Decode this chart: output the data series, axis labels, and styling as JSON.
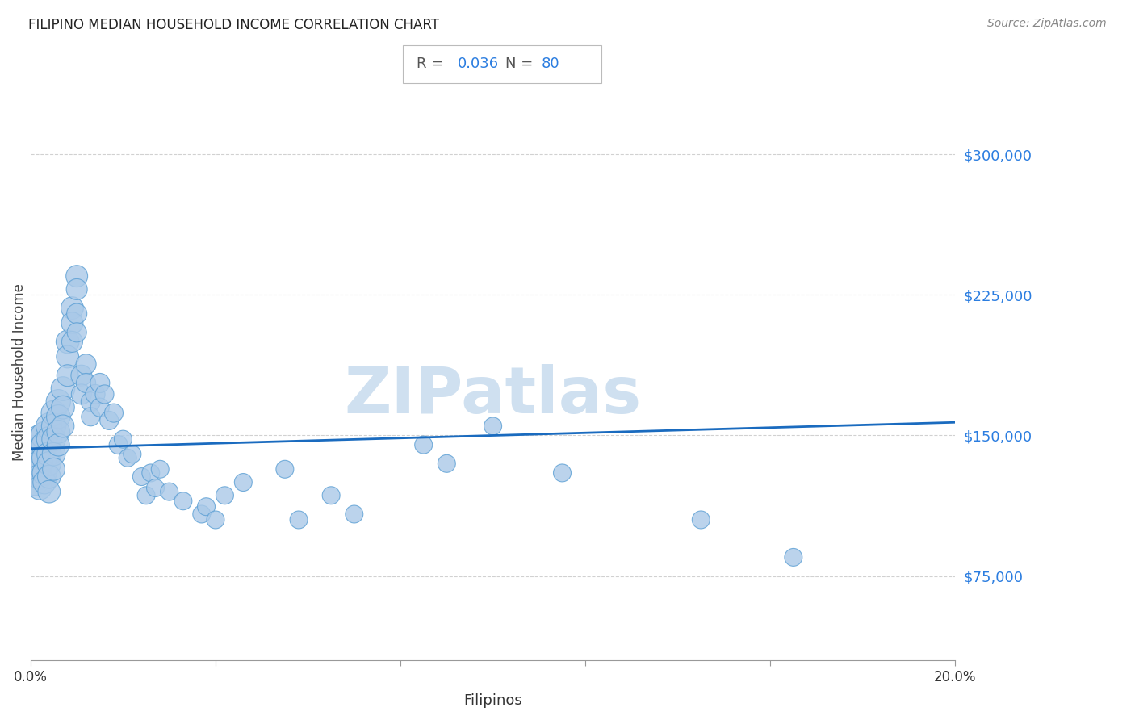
{
  "title": "FILIPINO MEDIAN HOUSEHOLD INCOME CORRELATION CHART",
  "source": "Source: ZipAtlas.com",
  "xlabel": "Filipinos",
  "ylabel": "Median Household Income",
  "R": "0.036",
  "N": "80",
  "xlim": [
    0.0,
    0.2
  ],
  "ylim": [
    30000,
    337500
  ],
  "yticks": [
    75000,
    150000,
    225000,
    300000
  ],
  "ytick_labels": [
    "$75,000",
    "$150,000",
    "$225,000",
    "$300,000"
  ],
  "xticks": [
    0.0,
    0.04,
    0.08,
    0.12,
    0.16,
    0.2
  ],
  "scatter_color": "#aac9e8",
  "scatter_edge_color": "#5b9fd4",
  "line_color": "#1a6bbf",
  "title_color": "#222222",
  "tick_label_color": "#2b7de0",
  "grid_color": "#cccccc",
  "watermark_color": "#cfe0f0",
  "box_border_color": "#bbbbbb",
  "regression_x0": 0.0,
  "regression_y0": 143000,
  "regression_x1": 0.2,
  "regression_y1": 157000,
  "scatter_x": [
    0.001,
    0.001,
    0.001,
    0.001,
    0.002,
    0.002,
    0.002,
    0.002,
    0.002,
    0.003,
    0.003,
    0.003,
    0.003,
    0.003,
    0.004,
    0.004,
    0.004,
    0.004,
    0.004,
    0.004,
    0.005,
    0.005,
    0.005,
    0.005,
    0.005,
    0.006,
    0.006,
    0.006,
    0.006,
    0.007,
    0.007,
    0.007,
    0.008,
    0.008,
    0.008,
    0.009,
    0.009,
    0.009,
    0.01,
    0.01,
    0.01,
    0.01,
    0.011,
    0.011,
    0.012,
    0.012,
    0.013,
    0.013,
    0.014,
    0.015,
    0.015,
    0.016,
    0.017,
    0.018,
    0.019,
    0.02,
    0.021,
    0.022,
    0.024,
    0.025,
    0.026,
    0.027,
    0.028,
    0.03,
    0.033,
    0.037,
    0.038,
    0.04,
    0.042,
    0.046,
    0.055,
    0.058,
    0.065,
    0.07,
    0.085,
    0.09,
    0.1,
    0.115,
    0.145,
    0.165
  ],
  "scatter_y": [
    142000,
    138000,
    130000,
    125000,
    148000,
    142000,
    135000,
    128000,
    122000,
    150000,
    145000,
    138000,
    130000,
    125000,
    155000,
    148000,
    140000,
    135000,
    128000,
    120000,
    162000,
    155000,
    148000,
    140000,
    132000,
    168000,
    160000,
    152000,
    145000,
    175000,
    165000,
    155000,
    200000,
    192000,
    182000,
    218000,
    210000,
    200000,
    235000,
    228000,
    215000,
    205000,
    182000,
    172000,
    188000,
    178000,
    168000,
    160000,
    172000,
    178000,
    165000,
    172000,
    158000,
    162000,
    145000,
    148000,
    138000,
    140000,
    128000,
    118000,
    130000,
    122000,
    132000,
    120000,
    115000,
    108000,
    112000,
    105000,
    118000,
    125000,
    132000,
    105000,
    118000,
    108000,
    145000,
    135000,
    155000,
    130000,
    105000,
    85000
  ],
  "scatter_sizes": [
    140,
    130,
    120,
    110,
    130,
    120,
    110,
    100,
    90,
    120,
    110,
    100,
    95,
    85,
    110,
    100,
    95,
    90,
    85,
    80,
    100,
    95,
    90,
    85,
    80,
    95,
    90,
    85,
    80,
    90,
    85,
    80,
    85,
    80,
    75,
    80,
    75,
    70,
    75,
    70,
    65,
    60,
    70,
    65,
    65,
    60,
    60,
    55,
    60,
    60,
    55,
    55,
    55,
    55,
    55,
    50,
    50,
    50,
    50,
    50,
    50,
    50,
    50,
    50,
    50,
    50,
    50,
    50,
    50,
    50,
    50,
    50,
    50,
    50,
    50,
    50,
    50,
    50,
    50,
    50
  ]
}
